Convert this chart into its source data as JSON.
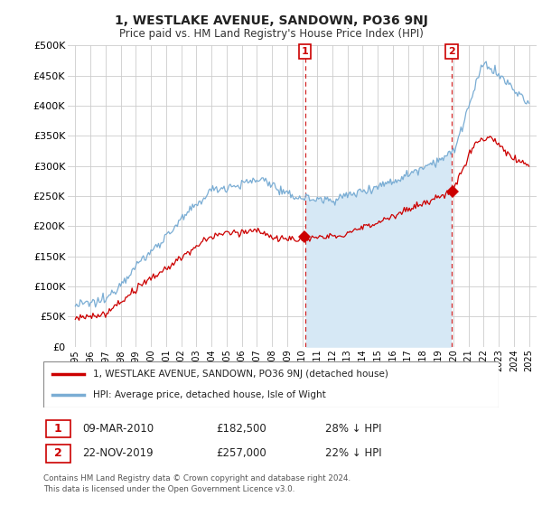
{
  "title": "1, WESTLAKE AVENUE, SANDOWN, PO36 9NJ",
  "subtitle": "Price paid vs. HM Land Registry's House Price Index (HPI)",
  "legend_line1": "1, WESTLAKE AVENUE, SANDOWN, PO36 9NJ (detached house)",
  "legend_line2": "HPI: Average price, detached house, Isle of Wight",
  "sale1_date": "09-MAR-2010",
  "sale1_price": "£182,500",
  "sale1_hpi": "28% ↓ HPI",
  "sale1_year": 2010.18,
  "sale1_value": 182500,
  "sale2_date": "22-NOV-2019",
  "sale2_price": "£257,000",
  "sale2_hpi": "22% ↓ HPI",
  "sale2_year": 2019.89,
  "sale2_value": 257000,
  "footnote": "Contains HM Land Registry data © Crown copyright and database right 2024.\nThis data is licensed under the Open Government Licence v3.0.",
  "ylim": [
    0,
    500000
  ],
  "yticks": [
    0,
    50000,
    100000,
    150000,
    200000,
    250000,
    300000,
    350000,
    400000,
    450000,
    500000
  ],
  "line_red_color": "#cc0000",
  "line_blue_color": "#7aadd4",
  "fill_color": "#d6e8f5",
  "dashed_color": "#cc0000",
  "background_color": "#ffffff",
  "grid_color": "#cccccc",
  "sale_marker_color": "#cc0000",
  "sale_label_color": "#cc0000"
}
